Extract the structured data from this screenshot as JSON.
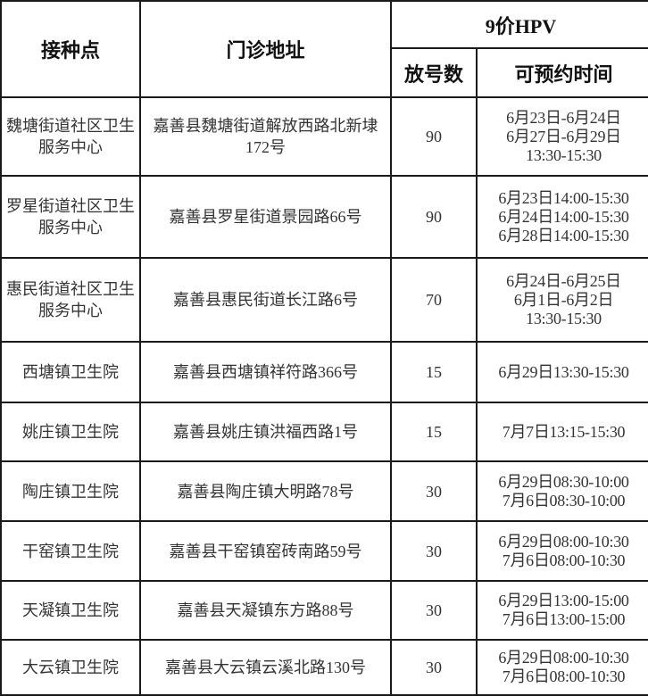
{
  "header": {
    "site": "接种点",
    "address": "门诊地址",
    "vaccine": "9价HPV",
    "quota": "放号数",
    "time": "可预约时间"
  },
  "rows": [
    {
      "site": "魏塘街道社区卫生服务中心",
      "address": "嘉善县魏塘街道解放西路北新埭172号",
      "quota": "90",
      "time": "6月23日-6月24日\n6月27日-6月29日\n13:30-15:30"
    },
    {
      "site": "罗星街道社区卫生服务中心",
      "address": "嘉善县罗星街道景园路66号",
      "quota": "90",
      "time": "6月23日14:00-15:30\n6月24日14:00-15:30\n6月28日14:00-15:30"
    },
    {
      "site": "惠民街道社区卫生服务中心",
      "address": "嘉善县惠民街道长江路6号",
      "quota": "70",
      "time": "6月24日-6月25日\n6月1日-6月2日\n13:30-15:30"
    },
    {
      "site": "西塘镇卫生院",
      "address": "嘉善县西塘镇祥符路366号",
      "quota": "15",
      "time": "6月29日13:30-15:30"
    },
    {
      "site": "姚庄镇卫生院",
      "address": "嘉善县姚庄镇洪福西路1号",
      "quota": "15",
      "time": "7月7日13:15-15:30"
    },
    {
      "site": "陶庄镇卫生院",
      "address": "嘉善县陶庄镇大明路78号",
      "quota": "30",
      "time": "6月29日08:30-10:00\n7月6日08:30-10:00"
    },
    {
      "site": "干窑镇卫生院",
      "address": "嘉善县干窑镇窑砖南路59号",
      "quota": "30",
      "time": "6月29日08:00-10:30\n7月6日08:00-10:30"
    },
    {
      "site": "天凝镇卫生院",
      "address": "嘉善县天凝镇东方路88号",
      "quota": "30",
      "time": "6月29日13:00-15:00\n7月6日13:00-15:00"
    },
    {
      "site": "大云镇卫生院",
      "address": "嘉善县大云镇云溪北路130号",
      "quota": "30",
      "time": "6月29日08:00-10:30\n7月6日08:00-10:30"
    }
  ]
}
